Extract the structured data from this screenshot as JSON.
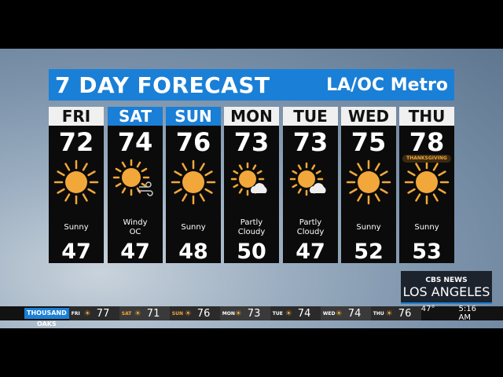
{
  "title": "7 DAY FORECAST",
  "region": "LA/OC Metro",
  "colors": {
    "accent": "#1a7fd6",
    "sun": "#f2a73a"
  },
  "days": [
    {
      "day": "FRI",
      "hi": "72",
      "lo": "47",
      "cond": "Sunny",
      "icon": "sun-icon",
      "weekend": false
    },
    {
      "day": "SAT",
      "hi": "74",
      "lo": "47",
      "cond": "Windy OC",
      "icon": "sun-wind-icon",
      "weekend": true
    },
    {
      "day": "SUN",
      "hi": "76",
      "lo": "48",
      "cond": "Sunny",
      "icon": "sun-icon",
      "weekend": true
    },
    {
      "day": "MON",
      "hi": "73",
      "lo": "50",
      "cond": "Partly Cloudy",
      "icon": "partly-cloudy-icon",
      "weekend": false
    },
    {
      "day": "TUE",
      "hi": "73",
      "lo": "47",
      "cond": "Partly Cloudy",
      "icon": "partly-cloudy-icon",
      "weekend": false
    },
    {
      "day": "WED",
      "hi": "75",
      "lo": "52",
      "cond": "Sunny",
      "icon": "sun-icon",
      "weekend": false
    },
    {
      "day": "THU",
      "hi": "78",
      "lo": "53",
      "cond": "Sunny",
      "icon": "sun-icon",
      "weekend": false,
      "badge": "THANKSGIVING"
    }
  ],
  "logo": {
    "network": "CBS NEWS",
    "city": "LOS ANGELES"
  },
  "ticker": {
    "location": "THOUSAND OAKS",
    "items": [
      {
        "day": "FRI",
        "temp": "77"
      },
      {
        "day": "SAT",
        "temp": "71"
      },
      {
        "day": "SUN",
        "temp": "76"
      },
      {
        "day": "MON",
        "temp": "73"
      },
      {
        "day": "TUE",
        "temp": "74"
      },
      {
        "day": "WED",
        "temp": "74"
      },
      {
        "day": "THU",
        "temp": "76"
      }
    ],
    "current_temp": "47°",
    "time": "5:16 AM"
  }
}
